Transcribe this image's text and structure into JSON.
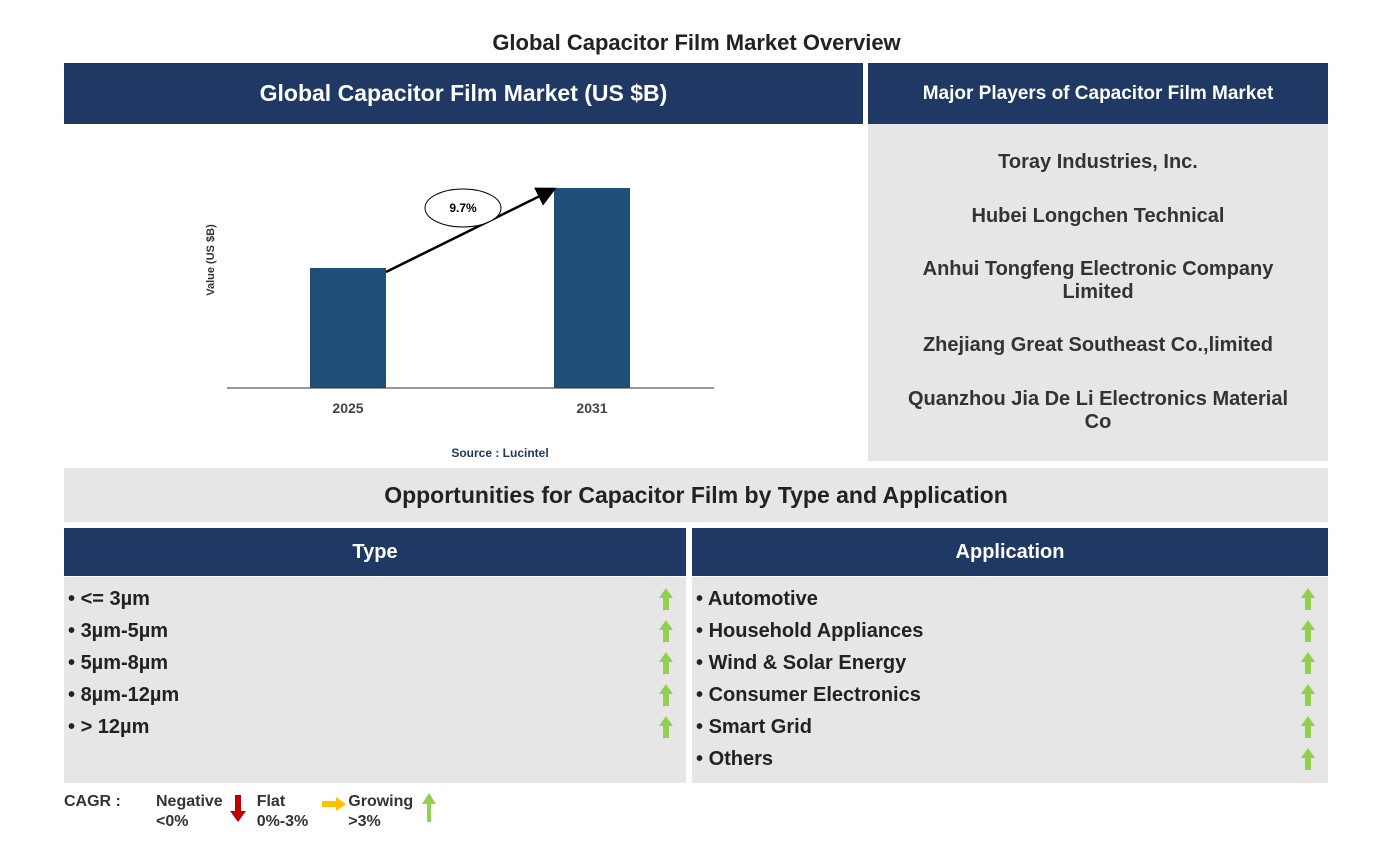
{
  "title": "Global Capacitor Film Market Overview",
  "chart_data": {
    "type": "bar",
    "title": "Global Capacitor Film Market (US $B)",
    "y_label": "Value (US $B)",
    "categories": [
      "2025",
      "2031"
    ],
    "values": [
      1.2,
      2.0
    ],
    "color": "#1f4e79",
    "ylim": [
      0,
      2.4
    ],
    "annotation": "9.7%",
    "source": "Source : Lucintel"
  },
  "players": {
    "title": "Major Players of Capacitor Film Market",
    "items": [
      "Toray Industries, Inc.",
      "Hubei Longchen Technical",
      "Anhui Tongfeng Electronic Company Limited",
      "Zhejiang Great Southeast Co.,limited",
      "Quanzhou Jia De Li Electronics Material Co"
    ]
  },
  "opportunities": {
    "title": "Opportunities for Capacitor Film by Type and Application",
    "type": {
      "title": "Type",
      "items": [
        "<= 3µm",
        "3µm-5µm",
        "5µm-8µm",
        "8µm-12µm",
        "> 12µm"
      ]
    },
    "application": {
      "title": "Application",
      "items": [
        "Automotive",
        "Household Appliances",
        "Wind & Solar Energy",
        "Consumer Electronics",
        "Smart Grid",
        "Others"
      ]
    }
  },
  "legend": {
    "label": "CAGR :",
    "negative": [
      "Negative",
      "<0%"
    ],
    "flat": [
      "Flat",
      "0%-3%"
    ],
    "growing": [
      "Growing",
      ">3%"
    ]
  }
}
